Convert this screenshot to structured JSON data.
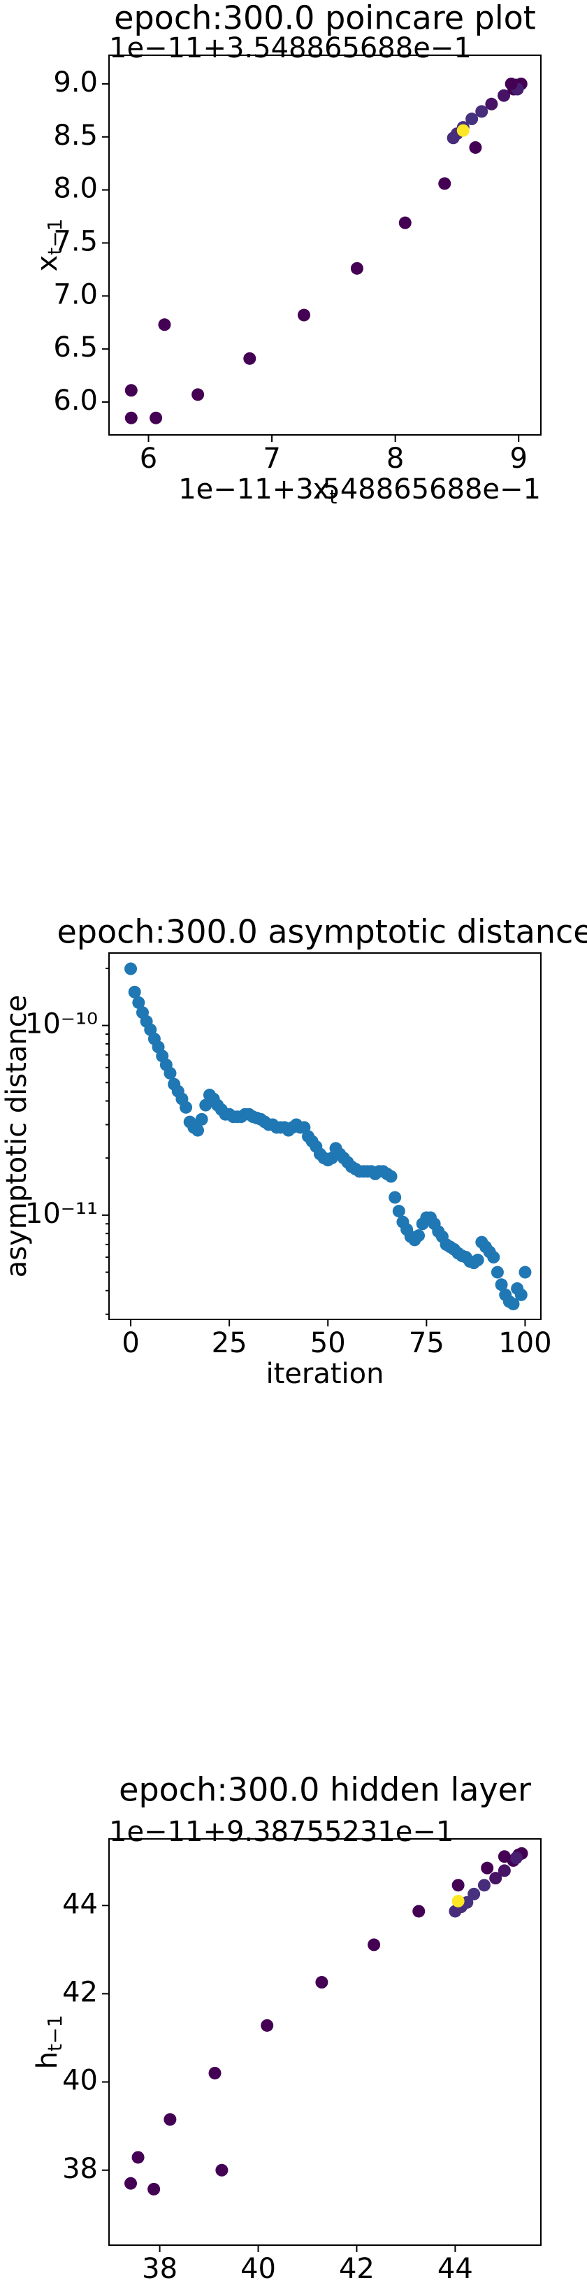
{
  "chart_data": [
    {
      "type": "scatter",
      "title": "epoch:300.0 poincare plot",
      "x_offset_label": "1e−11+3.548865688e−1",
      "y_offset_label": "1e−11+3.548865688e−1",
      "xlabel": {
        "base": "x",
        "sub": "t"
      },
      "ylabel": {
        "base": "x",
        "sub": "t−1"
      },
      "x": [
        5.86,
        5.86,
        6.06,
        6.13,
        6.4,
        6.82,
        7.26,
        7.69,
        8.08,
        8.4,
        8.65,
        8.47,
        8.5,
        8.55,
        8.62,
        8.7,
        8.78,
        8.88,
        8.96,
        9.02,
        8.98,
        8.99,
        8.94,
        8.55
      ],
      "values": [
        6.11,
        5.85,
        5.85,
        6.73,
        6.07,
        6.41,
        6.82,
        7.26,
        7.69,
        8.06,
        8.4,
        8.49,
        8.53,
        8.59,
        8.67,
        8.74,
        8.81,
        8.89,
        8.95,
        9.0,
        8.99,
        8.95,
        9.0,
        8.56
      ],
      "colors": [
        "#440154",
        "#440154",
        "#440154",
        "#440154",
        "#440154",
        "#440154",
        "#440154",
        "#440154",
        "#440154",
        "#440154",
        "#440154",
        "#472d7b",
        "#472d7b",
        "#46327e",
        "#46327e",
        "#472d7b",
        "#471365",
        "#471365",
        "#440154",
        "#440154",
        "#440154",
        "#481f70",
        "#440154",
        "#fde725"
      ],
      "xlim": [
        5.68,
        9.18
      ],
      "ylim": [
        5.69,
        9.27
      ],
      "xticks": [
        6,
        7,
        8,
        9
      ],
      "yticks": [
        {
          "value": 6,
          "label": "6.0"
        },
        {
          "value": 6.5,
          "label": "6.5"
        },
        {
          "value": 7,
          "label": "7.0"
        },
        {
          "value": 7.5,
          "label": "7.5"
        },
        {
          "value": 8,
          "label": "8.0"
        },
        {
          "value": 8.5,
          "label": "8.5"
        },
        {
          "value": 9,
          "label": "9.0"
        }
      ]
    },
    {
      "type": "scatter",
      "title": "epoch:300.0 asymptotic distance",
      "xlabel": "iteration",
      "ylabel": "asymptotic distance",
      "log_y": true,
      "color": "#1f77b4",
      "x": [
        0,
        1,
        2,
        3,
        4,
        5,
        6,
        7,
        8,
        9,
        10,
        11,
        12,
        13,
        14,
        15,
        16,
        17,
        18,
        19,
        20,
        21,
        22,
        23,
        24,
        25,
        26,
        27,
        28,
        29,
        30,
        31,
        32,
        33,
        34,
        35,
        36,
        37,
        38,
        39,
        40,
        41,
        42,
        43,
        44,
        45,
        46,
        47,
        48,
        49,
        50,
        51,
        52,
        53,
        54,
        55,
        56,
        57,
        58,
        59,
        60,
        61,
        62,
        63,
        64,
        65,
        66,
        67,
        68,
        69,
        70,
        71,
        72,
        73,
        74,
        75,
        76,
        77,
        78,
        79,
        80,
        81,
        82,
        83,
        84,
        85,
        86,
        87,
        88,
        89,
        90,
        91,
        92,
        93,
        94,
        95,
        96,
        97,
        98,
        99,
        100
      ],
      "values": [
        1.99e-10,
        1.5e-10,
        1.32e-10,
        1.17e-10,
        1.05e-10,
        9.5e-11,
        8.5e-11,
        7.7e-11,
        6.9e-11,
        6.2e-11,
        5.6e-11,
        4.9e-11,
        4.5e-11,
        4.1e-11,
        3.7e-11,
        3.1e-11,
        2.9e-11,
        2.8e-11,
        3.2e-11,
        3.8e-11,
        4.3e-11,
        4.1e-11,
        3.8e-11,
        3.6e-11,
        3.4e-11,
        3.4e-11,
        3.3e-11,
        3.3e-11,
        3.3e-11,
        3.4e-11,
        3.4e-11,
        3.3e-11,
        3.25e-11,
        3.2e-11,
        3.1e-11,
        3e-11,
        3e-11,
        2.9e-11,
        2.9e-11,
        2.9e-11,
        2.8e-11,
        2.9e-11,
        3e-11,
        2.9e-11,
        2.9e-11,
        2.6e-11,
        2.45e-11,
        2.3e-11,
        2.1e-11,
        2e-11,
        1.95e-11,
        2e-11,
        2.25e-11,
        2.1e-11,
        2e-11,
        1.9e-11,
        1.8e-11,
        1.75e-11,
        1.7e-11,
        1.7e-11,
        1.7e-11,
        1.7e-11,
        1.65e-11,
        1.7e-11,
        1.7e-11,
        1.65e-11,
        1.6e-11,
        1.24e-11,
        1.05e-11,
        9.2e-12,
        8.4e-12,
        7.7e-12,
        7.4e-12,
        7.8e-12,
        9e-12,
        9.7e-12,
        9.7e-12,
        9e-12,
        8.2e-12,
        7.7e-12,
        7e-12,
        6.8e-12,
        6.6e-12,
        6.3e-12,
        6.1e-12,
        6e-12,
        5.7e-12,
        5.6e-12,
        5.8e-12,
        7.2e-12,
        6.8e-12,
        6.4e-12,
        6e-12,
        5e-12,
        4.3e-12,
        3.8e-12,
        3.5e-12,
        3.4e-12,
        4.1e-12,
        3.8e-12,
        5e-12
      ],
      "xlim": [
        -5.5,
        104
      ],
      "ylim": [
        2.82e-12,
        2.41e-10
      ],
      "xticks": [
        0,
        25,
        50,
        75,
        100
      ],
      "yticks": [
        {
          "value": 1e-11,
          "label": "10⁻¹¹"
        },
        {
          "value": 1e-10,
          "label": "10⁻¹⁰"
        }
      ]
    },
    {
      "type": "scatter",
      "title": "epoch:300.0 hidden layer",
      "x_offset_label": "1e−11+9.38755231e−1",
      "y_offset_label": "1e−11+9.38755231e−1",
      "xlabel": {
        "base": "h",
        "sub": "t"
      },
      "ylabel": {
        "base": "h",
        "sub": "t−1"
      },
      "x": [
        37.41,
        37.56,
        37.88,
        38.21,
        39.12,
        39.26,
        40.18,
        41.29,
        42.35,
        43.26,
        44.06,
        44.0,
        44.12,
        44.24,
        44.38,
        44.59,
        44.82,
        45.0,
        45.18,
        45.29,
        45.35,
        45.24,
        44.65,
        45.0,
        44.06
      ],
      "values": [
        37.7,
        38.29,
        37.57,
        39.15,
        40.2,
        38.0,
        41.28,
        42.26,
        43.11,
        43.87,
        44.46,
        43.87,
        43.97,
        44.07,
        44.26,
        44.46,
        44.62,
        44.79,
        45.02,
        45.15,
        45.18,
        45.08,
        44.85,
        45.11,
        44.1
      ],
      "colors": [
        "#440154",
        "#440154",
        "#440154",
        "#440154",
        "#440154",
        "#440154",
        "#440154",
        "#440154",
        "#440154",
        "#440154",
        "#440154",
        "#472d7b",
        "#472d7b",
        "#46327e",
        "#46327e",
        "#472d7b",
        "#471365",
        "#471365",
        "#440154",
        "#440154",
        "#440154",
        "#481f70",
        "#440154",
        "#440154",
        "#fde725"
      ],
      "xlim": [
        36.97,
        45.74
      ],
      "ylim": [
        36.3,
        45.51
      ],
      "xticks": [
        38,
        40,
        42,
        44
      ],
      "yticks": [
        38,
        40,
        42,
        44
      ]
    }
  ]
}
